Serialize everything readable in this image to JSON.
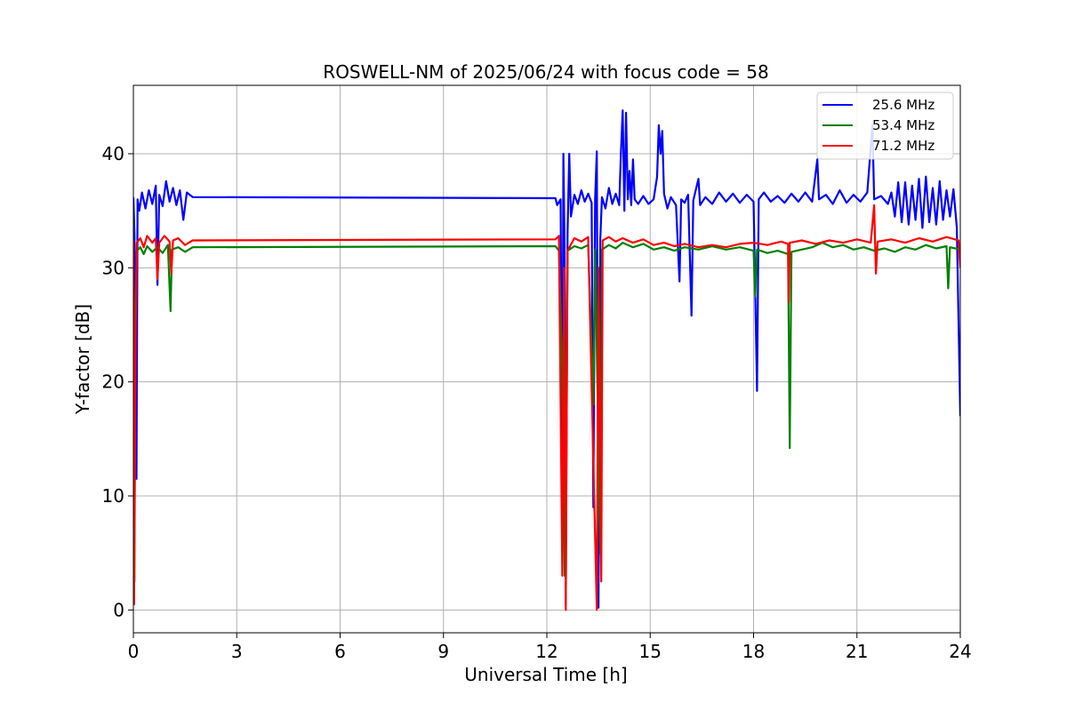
{
  "chart_data": {
    "type": "line",
    "title": "ROSWELL-NM of 2025/06/24 with focus code = 58",
    "xlabel": "Universal Time [h]",
    "ylabel": "Y-factor [dB]",
    "xlim": [
      0,
      24
    ],
    "ylim": [
      -2,
      46
    ],
    "xticks": [
      0,
      3,
      6,
      9,
      12,
      15,
      18,
      21,
      24
    ],
    "yticks": [
      0,
      10,
      20,
      30,
      40
    ],
    "grid": true,
    "legend_position": "top-right",
    "series": [
      {
        "name": "25.6 MHz",
        "color": "#0000ff",
        "points": [
          [
            0.0,
            36.2
          ],
          [
            0.03,
            33.0
          ],
          [
            0.06,
            23.8
          ],
          [
            0.09,
            11.5
          ],
          [
            0.12,
            36.0
          ],
          [
            0.17,
            35.0
          ],
          [
            0.25,
            36.6
          ],
          [
            0.35,
            35.2
          ],
          [
            0.45,
            36.8
          ],
          [
            0.55,
            35.6
          ],
          [
            0.65,
            37.2
          ],
          [
            0.7,
            28.5
          ],
          [
            0.75,
            36.4
          ],
          [
            0.85,
            35.4
          ],
          [
            0.95,
            37.6
          ],
          [
            1.05,
            35.8
          ],
          [
            1.15,
            37.0
          ],
          [
            1.25,
            35.5
          ],
          [
            1.35,
            36.8
          ],
          [
            1.45,
            34.2
          ],
          [
            1.55,
            36.6
          ],
          [
            1.72,
            36.2
          ],
          [
            12.25,
            36.1
          ],
          [
            12.3,
            35.5
          ],
          [
            12.4,
            36.0
          ],
          [
            12.45,
            9.5
          ],
          [
            12.48,
            40.0
          ],
          [
            12.52,
            31.0
          ],
          [
            12.55,
            0.5
          ],
          [
            12.6,
            33.0
          ],
          [
            12.65,
            40.0
          ],
          [
            12.7,
            34.5
          ],
          [
            12.8,
            36.4
          ],
          [
            12.9,
            35.6
          ],
          [
            13.0,
            36.8
          ],
          [
            13.1,
            35.8
          ],
          [
            13.2,
            36.5
          ],
          [
            13.3,
            35.7
          ],
          [
            13.35,
            9.0
          ],
          [
            13.4,
            36.0
          ],
          [
            13.45,
            40.2
          ],
          [
            13.5,
            0.2
          ],
          [
            13.55,
            32.5
          ],
          [
            13.6,
            36.2
          ],
          [
            13.7,
            35.2
          ],
          [
            13.8,
            37.0
          ],
          [
            13.9,
            35.6
          ],
          [
            14.0,
            36.5
          ],
          [
            14.1,
            35.5
          ],
          [
            14.15,
            40.0
          ],
          [
            14.2,
            43.8
          ],
          [
            14.25,
            35.0
          ],
          [
            14.3,
            43.6
          ],
          [
            14.35,
            36.0
          ],
          [
            14.4,
            38.5
          ],
          [
            14.45,
            35.5
          ],
          [
            14.5,
            39.5
          ],
          [
            14.55,
            36.0
          ],
          [
            14.65,
            35.6
          ],
          [
            14.8,
            36.3
          ],
          [
            14.95,
            35.6
          ],
          [
            15.1,
            36.0
          ],
          [
            15.2,
            38.0
          ],
          [
            15.25,
            42.5
          ],
          [
            15.3,
            40.0
          ],
          [
            15.35,
            42.0
          ],
          [
            15.4,
            36.5
          ],
          [
            15.5,
            35.2
          ],
          [
            15.6,
            36.2
          ],
          [
            15.75,
            35.5
          ],
          [
            15.85,
            28.8
          ],
          [
            15.9,
            36.0
          ],
          [
            16.0,
            35.7
          ],
          [
            16.1,
            36.4
          ],
          [
            16.2,
            25.8
          ],
          [
            16.25,
            35.9
          ],
          [
            16.4,
            37.8
          ],
          [
            16.45,
            35.5
          ],
          [
            16.6,
            36.2
          ],
          [
            16.8,
            35.6
          ],
          [
            17.0,
            36.6
          ],
          [
            17.2,
            35.8
          ],
          [
            17.4,
            36.5
          ],
          [
            17.6,
            35.7
          ],
          [
            17.8,
            36.4
          ],
          [
            18.0,
            35.8
          ],
          [
            18.1,
            19.2
          ],
          [
            18.15,
            36.0
          ],
          [
            18.3,
            36.6
          ],
          [
            18.5,
            35.8
          ],
          [
            18.7,
            36.3
          ],
          [
            18.9,
            35.7
          ],
          [
            19.1,
            36.5
          ],
          [
            19.3,
            35.8
          ],
          [
            19.5,
            36.6
          ],
          [
            19.7,
            35.8
          ],
          [
            19.85,
            39.5
          ],
          [
            19.9,
            36.0
          ],
          [
            20.1,
            36.4
          ],
          [
            20.3,
            35.6
          ],
          [
            20.5,
            36.8
          ],
          [
            20.7,
            35.7
          ],
          [
            20.9,
            36.4
          ],
          [
            21.1,
            35.8
          ],
          [
            21.3,
            36.6
          ],
          [
            21.45,
            42.5
          ],
          [
            21.5,
            36.0
          ],
          [
            21.7,
            36.3
          ],
          [
            21.9,
            35.6
          ],
          [
            22.0,
            36.6
          ],
          [
            22.1,
            34.5
          ],
          [
            22.2,
            37.5
          ],
          [
            22.3,
            34.0
          ],
          [
            22.4,
            37.5
          ],
          [
            22.5,
            33.8
          ],
          [
            22.6,
            37.2
          ],
          [
            22.7,
            34.2
          ],
          [
            22.8,
            37.8
          ],
          [
            22.9,
            33.5
          ],
          [
            23.0,
            38.0
          ],
          [
            23.1,
            34.0
          ],
          [
            23.2,
            37.0
          ],
          [
            23.3,
            33.8
          ],
          [
            23.4,
            37.6
          ],
          [
            23.5,
            34.2
          ],
          [
            23.6,
            36.8
          ],
          [
            23.7,
            34.5
          ],
          [
            23.8,
            36.9
          ],
          [
            23.9,
            33.5
          ],
          [
            23.97,
            22.0
          ],
          [
            24.0,
            17.0
          ]
        ]
      },
      {
        "name": "53.4 MHz",
        "color": "#008000",
        "points": [
          [
            0.0,
            31.6
          ],
          [
            0.03,
            2.5
          ],
          [
            0.06,
            26.0
          ],
          [
            0.1,
            31.5
          ],
          [
            0.2,
            31.8
          ],
          [
            0.3,
            31.2
          ],
          [
            0.4,
            31.9
          ],
          [
            0.55,
            31.4
          ],
          [
            0.7,
            31.8
          ],
          [
            0.85,
            31.3
          ],
          [
            1.0,
            32.0
          ],
          [
            1.08,
            26.2
          ],
          [
            1.12,
            31.6
          ],
          [
            1.3,
            31.8
          ],
          [
            1.5,
            31.4
          ],
          [
            1.72,
            31.8
          ],
          [
            12.25,
            31.9
          ],
          [
            12.35,
            31.5
          ],
          [
            12.45,
            21.0
          ],
          [
            12.52,
            3.0
          ],
          [
            12.6,
            31.5
          ],
          [
            12.8,
            31.9
          ],
          [
            13.0,
            31.7
          ],
          [
            13.2,
            32.0
          ],
          [
            13.35,
            18.0
          ],
          [
            13.4,
            31.6
          ],
          [
            13.55,
            5.0
          ],
          [
            13.6,
            31.6
          ],
          [
            13.8,
            32.0
          ],
          [
            14.0,
            31.7
          ],
          [
            14.2,
            32.2
          ],
          [
            14.5,
            31.8
          ],
          [
            14.8,
            32.1
          ],
          [
            15.1,
            31.6
          ],
          [
            15.4,
            31.8
          ],
          [
            15.7,
            31.5
          ],
          [
            16.0,
            31.8
          ],
          [
            16.4,
            31.6
          ],
          [
            16.8,
            31.9
          ],
          [
            17.2,
            31.6
          ],
          [
            17.6,
            31.8
          ],
          [
            18.0,
            31.5
          ],
          [
            18.05,
            27.5
          ],
          [
            18.1,
            31.6
          ],
          [
            18.4,
            31.3
          ],
          [
            18.7,
            31.5
          ],
          [
            19.0,
            31.2
          ],
          [
            19.05,
            14.2
          ],
          [
            19.1,
            31.4
          ],
          [
            19.4,
            31.6
          ],
          [
            19.7,
            31.8
          ],
          [
            20.0,
            32.2
          ],
          [
            20.3,
            31.8
          ],
          [
            20.6,
            32.0
          ],
          [
            20.9,
            31.6
          ],
          [
            21.2,
            31.8
          ],
          [
            21.5,
            31.5
          ],
          [
            21.8,
            31.7
          ],
          [
            22.1,
            31.4
          ],
          [
            22.4,
            31.8
          ],
          [
            22.7,
            31.6
          ],
          [
            23.0,
            32.0
          ],
          [
            23.3,
            31.7
          ],
          [
            23.6,
            31.9
          ],
          [
            23.65,
            28.2
          ],
          [
            23.7,
            31.8
          ],
          [
            24.0,
            31.6
          ]
        ]
      },
      {
        "name": "71.2 MHz",
        "color": "#ff0000",
        "points": [
          [
            0.0,
            32.4
          ],
          [
            0.02,
            0.5
          ],
          [
            0.04,
            12.0
          ],
          [
            0.07,
            25.0
          ],
          [
            0.1,
            32.2
          ],
          [
            0.2,
            32.6
          ],
          [
            0.3,
            31.8
          ],
          [
            0.4,
            32.8
          ],
          [
            0.55,
            32.2
          ],
          [
            0.65,
            32.6
          ],
          [
            0.7,
            29.0
          ],
          [
            0.75,
            32.2
          ],
          [
            0.9,
            32.8
          ],
          [
            1.05,
            32.3
          ],
          [
            1.1,
            29.5
          ],
          [
            1.15,
            32.4
          ],
          [
            1.3,
            32.6
          ],
          [
            1.5,
            32.0
          ],
          [
            1.72,
            32.4
          ],
          [
            12.25,
            32.5
          ],
          [
            12.35,
            32.8
          ],
          [
            12.45,
            3.0
          ],
          [
            12.5,
            30.0
          ],
          [
            12.55,
            0.0
          ],
          [
            12.6,
            31.5
          ],
          [
            12.8,
            32.6
          ],
          [
            13.0,
            32.3
          ],
          [
            13.2,
            32.7
          ],
          [
            13.45,
            0.0
          ],
          [
            13.5,
            30.0
          ],
          [
            13.58,
            2.5
          ],
          [
            13.62,
            32.4
          ],
          [
            13.8,
            32.7
          ],
          [
            14.0,
            32.3
          ],
          [
            14.2,
            32.6
          ],
          [
            14.5,
            32.2
          ],
          [
            14.8,
            32.5
          ],
          [
            15.1,
            32.0
          ],
          [
            15.4,
            32.2
          ],
          [
            15.7,
            31.9
          ],
          [
            16.0,
            32.1
          ],
          [
            16.4,
            31.8
          ],
          [
            16.8,
            32.0
          ],
          [
            17.2,
            31.8
          ],
          [
            17.6,
            32.1
          ],
          [
            18.0,
            32.2
          ],
          [
            18.4,
            32.0
          ],
          [
            18.8,
            32.3
          ],
          [
            19.0,
            32.1
          ],
          [
            19.02,
            27.0
          ],
          [
            19.05,
            32.2
          ],
          [
            19.4,
            32.4
          ],
          [
            19.8,
            32.1
          ],
          [
            20.2,
            32.4
          ],
          [
            20.6,
            32.2
          ],
          [
            21.0,
            32.5
          ],
          [
            21.4,
            32.2
          ],
          [
            21.5,
            35.5
          ],
          [
            21.55,
            29.5
          ],
          [
            21.6,
            32.3
          ],
          [
            22.0,
            32.5
          ],
          [
            22.4,
            32.2
          ],
          [
            22.8,
            32.6
          ],
          [
            23.2,
            32.3
          ],
          [
            23.6,
            32.7
          ],
          [
            23.95,
            32.4
          ],
          [
            24.0,
            30.0
          ]
        ]
      }
    ]
  }
}
